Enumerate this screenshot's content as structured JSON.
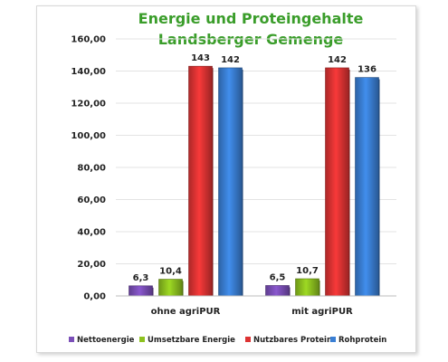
{
  "chart_data": {
    "type": "bar",
    "title": [
      "Energie und Proteingehalte",
      "Landsberger Gemenge"
    ],
    "categories": [
      "ohne agriPUR",
      "mit agriPUR"
    ],
    "series": [
      {
        "name": "Nettoenergie",
        "color": "#7b4fb8",
        "values": [
          6.3,
          6.5
        ],
        "labels": [
          "6,3",
          "6,5"
        ]
      },
      {
        "name": "Umsetzbare Energie",
        "color": "#8dc21f",
        "values": [
          10.4,
          10.7
        ],
        "labels": [
          "10,4",
          "10,7"
        ]
      },
      {
        "name": "Nutzbares Protein",
        "color": "#dd3333",
        "values": [
          143,
          142
        ],
        "labels": [
          "143",
          "142"
        ]
      },
      {
        "name": "Rohprotein",
        "color": "#3a7fd4",
        "values": [
          142,
          136
        ],
        "labels": [
          "142",
          "136"
        ]
      }
    ],
    "ylim": [
      0,
      160
    ],
    "yticks": [
      {
        "value": 0,
        "label": "0,00"
      },
      {
        "value": 20,
        "label": "20,00"
      },
      {
        "value": 40,
        "label": "40,00"
      },
      {
        "value": 60,
        "label": "60,00"
      },
      {
        "value": 80,
        "label": "80,00"
      },
      {
        "value": 100,
        "label": "100,00"
      },
      {
        "value": 120,
        "label": "120,00"
      },
      {
        "value": 140,
        "label": "140,00"
      },
      {
        "value": 160,
        "label": "160,00"
      }
    ],
    "grid": true,
    "legend_position": "bottom"
  }
}
